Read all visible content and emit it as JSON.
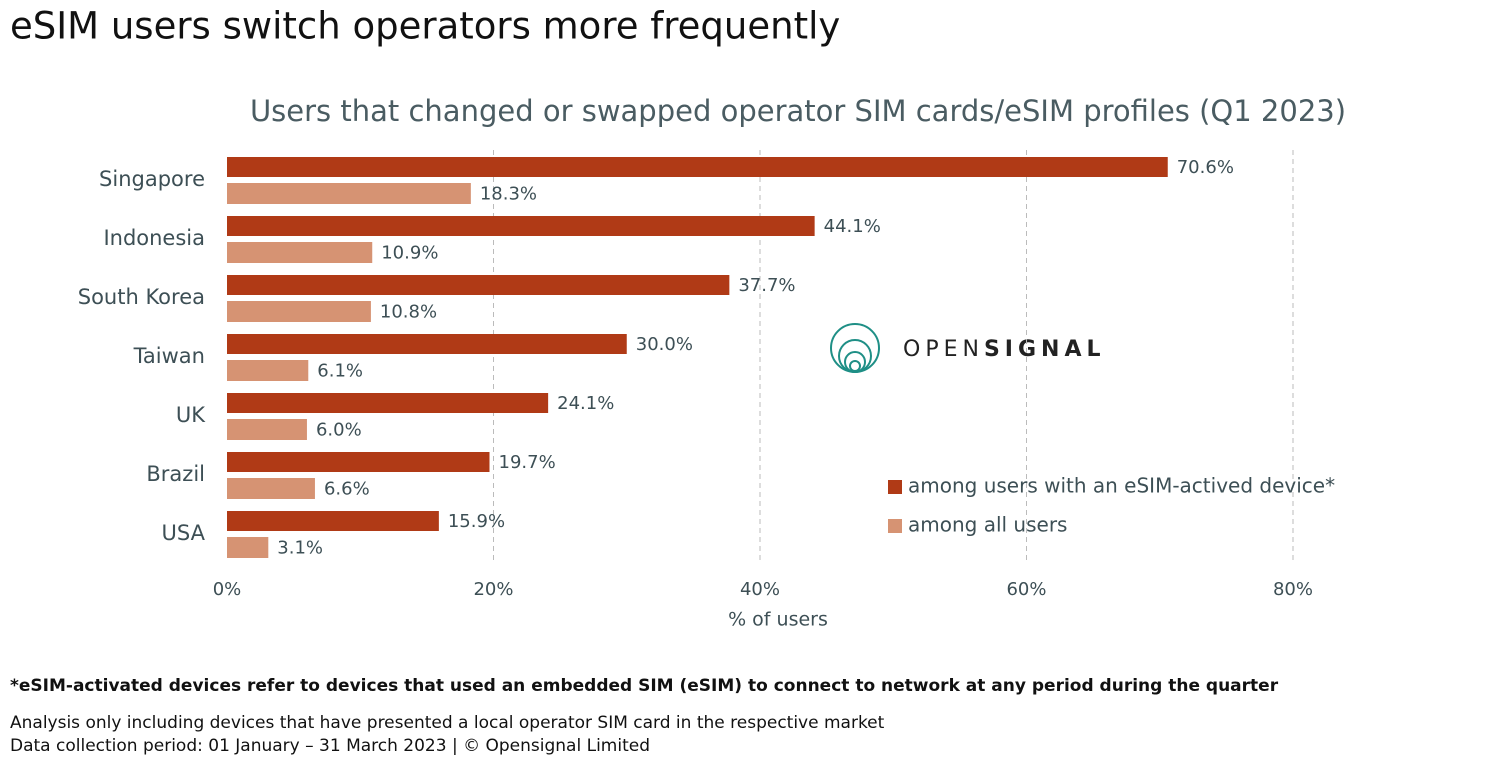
{
  "chart_data": {
    "type": "bar",
    "orientation": "horizontal",
    "title": "eSIM users switch operators more frequently",
    "subtitle": "Users that changed or swapped operator SIM cards/eSIM profiles (Q1 2023)",
    "categories": [
      "Singapore",
      "Indonesia",
      "South Korea",
      "Taiwan",
      "UK",
      "Brazil",
      "USA"
    ],
    "series": [
      {
        "name": "among users with an eSIM-actived device*",
        "color": "#b03a16",
        "values": [
          70.6,
          44.1,
          37.7,
          30.0,
          24.1,
          19.7,
          15.9
        ],
        "value_labels": [
          "70.6%",
          "44.1%",
          "37.7%",
          "30.0%",
          "24.1%",
          "19.7%",
          "15.9%"
        ]
      },
      {
        "name": "among all users",
        "color": "#d69373",
        "values": [
          18.3,
          10.9,
          10.8,
          6.1,
          6.0,
          6.6,
          3.1
        ],
        "value_labels": [
          "18.3%",
          "10.9%",
          "10.8%",
          "6.1%",
          "6.0%",
          "6.6%",
          "3.1%"
        ]
      }
    ],
    "xlim": [
      0,
      80
    ],
    "xticks": [
      {
        "value": 0,
        "label": "0%"
      },
      {
        "value": 20,
        "label": "20%"
      },
      {
        "value": 40,
        "label": "40%"
      },
      {
        "value": 60,
        "label": "60%"
      },
      {
        "value": 80,
        "label": "80%"
      }
    ],
    "xlabel": "% of users",
    "grid": true,
    "legend_position": "lower right",
    "logo_text": [
      "OPEN",
      "SIGNAL"
    ],
    "footnote": "*eSIM-activated devices refer to devices that used an embedded SIM (eSIM) to connect to network at any period during the quarter",
    "notes": [
      "Analysis only including devices that have presented a local operator SIM card in the respective market",
      "Data collection period: 01 January – 31 March 2023  | © Opensignal Limited"
    ]
  }
}
